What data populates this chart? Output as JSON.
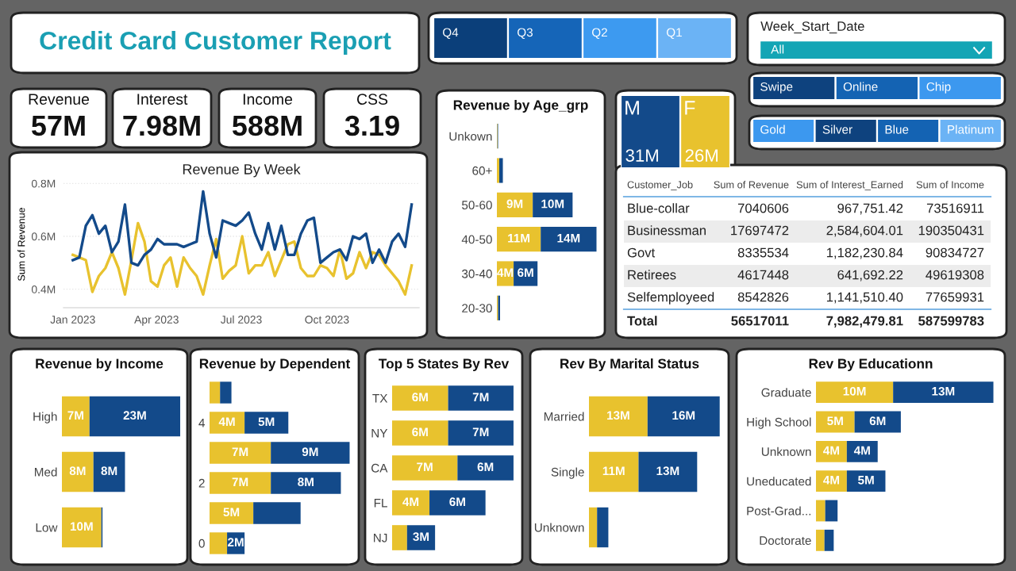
{
  "chart_data": [
    {
      "type": "other",
      "title": "Credit Card Customer Report"
    },
    {
      "type": "other",
      "categories": [
        "Q4",
        "Q3",
        "Q2",
        "Q1"
      ],
      "colors": [
        "#0b3f7a",
        "#1565b8",
        "#3d9af0",
        "#6bb3f5"
      ]
    },
    {
      "type": "other",
      "title": "Week_Start_Date",
      "annotations": [
        "All"
      ]
    },
    {
      "type": "other",
      "title": "Revenue",
      "annotations": [
        "57M"
      ]
    },
    {
      "type": "other",
      "title": "Interest",
      "annotations": [
        "7.98M"
      ]
    },
    {
      "type": "other",
      "title": "Income",
      "annotations": [
        "588M"
      ]
    },
    {
      "type": "other",
      "title": "CSS",
      "annotations": [
        "3.19"
      ]
    },
    {
      "type": "line",
      "title": "Revenue By Week",
      "ylabel": "Sum of Revenue",
      "x": [
        "2023-01-01",
        "2023-01-08",
        "2023-01-15",
        "2023-01-22",
        "2023-01-29",
        "2023-02-05",
        "2023-02-12",
        "2023-02-19",
        "2023-02-26",
        "2023-03-05",
        "2023-03-12",
        "2023-03-19",
        "2023-03-26",
        "2023-04-02",
        "2023-04-09",
        "2023-04-16",
        "2023-04-23",
        "2023-04-30",
        "2023-05-07",
        "2023-05-14",
        "2023-05-21",
        "2023-05-28",
        "2023-06-04",
        "2023-06-11",
        "2023-06-18",
        "2023-06-25",
        "2023-07-02",
        "2023-07-09",
        "2023-07-16",
        "2023-07-23",
        "2023-07-30",
        "2023-08-06",
        "2023-08-13",
        "2023-08-20",
        "2023-08-27",
        "2023-09-03",
        "2023-09-10",
        "2023-09-17",
        "2023-09-24",
        "2023-10-01",
        "2023-10-08",
        "2023-10-15",
        "2023-10-22",
        "2023-10-29",
        "2023-11-05",
        "2023-11-12",
        "2023-11-19",
        "2023-11-26",
        "2023-12-03",
        "2023-12-10",
        "2023-12-17",
        "2023-12-24",
        "2023-12-31"
      ],
      "series": [
        {
          "color": "#e8c22e",
          "values": [
            0.53,
            0.52,
            0.51,
            0.39,
            0.45,
            0.48,
            0.54,
            0.48,
            0.38,
            0.51,
            0.65,
            0.58,
            0.43,
            0.41,
            0.49,
            0.52,
            0.41,
            0.52,
            0.48,
            0.45,
            0.38,
            0.49,
            0.59,
            0.44,
            0.47,
            0.49,
            0.6,
            0.46,
            0.49,
            0.49,
            0.54,
            0.45,
            0.51,
            0.57,
            0.58,
            0.48,
            0.45,
            0.45,
            0.49,
            0.48,
            0.45,
            0.55,
            0.44,
            0.46,
            0.54,
            0.48,
            0.54,
            0.53,
            0.49,
            0.46,
            0.43,
            0.38,
            0.49
          ]
        },
        {
          "color": "#134a8a",
          "values": [
            0.51,
            0.52,
            0.64,
            0.68,
            0.61,
            0.64,
            0.54,
            0.58,
            0.72,
            0.5,
            0.49,
            0.53,
            0.55,
            0.59,
            0.57,
            0.57,
            0.57,
            0.56,
            0.57,
            0.58,
            0.77,
            0.61,
            0.52,
            0.66,
            0.65,
            0.64,
            0.66,
            0.69,
            0.61,
            0.55,
            0.65,
            0.55,
            0.64,
            0.53,
            0.53,
            0.61,
            0.66,
            0.67,
            0.5,
            0.52,
            0.54,
            0.55,
            0.51,
            0.6,
            0.59,
            0.61,
            0.5,
            0.55,
            0.5,
            0.58,
            0.61,
            0.56,
            0.72
          ]
        }
      ],
      "xlim": [
        "2022-12-22",
        "2024-01-08"
      ],
      "xticks": [
        {
          "value": "2023-01-01",
          "label": "Jan 2023"
        },
        {
          "value": "2023-04-01",
          "label": "Apr 2023"
        },
        {
          "value": "2023-07-01",
          "label": "Jul 2023"
        },
        {
          "value": "2023-10-01",
          "label": "Oct 2023"
        }
      ],
      "ylim": [
        0.33,
        0.81
      ],
      "yticks": [
        {
          "value": 0.4,
          "label": "0.4M"
        },
        {
          "value": 0.6,
          "label": "0.6M"
        },
        {
          "value": 0.8,
          "label": "0.8M"
        }
      ],
      "grid": "y",
      "line_style": "solid",
      "legend": false
    },
    {
      "type": "bar",
      "orientation": "horizontal",
      "stacked": true,
      "title": "Revenue by Age_grp",
      "categories": [
        "Unkown",
        "60+",
        "50-60",
        "40-50",
        "30-40",
        "20-30"
      ],
      "series": [
        {
          "color": "#e8c22e",
          "values": [
            0.15,
            0.6,
            9,
            11,
            4.2,
            0.3
          ],
          "value_labels": [
            null,
            null,
            "9M",
            "11M",
            "4M",
            null
          ]
        },
        {
          "color": "#134a8a",
          "values": [
            0.15,
            0.9,
            10,
            14,
            6,
            0.5
          ],
          "value_labels": [
            null,
            null,
            "10M",
            "14M",
            "6M",
            null
          ]
        }
      ]
    },
    {
      "type": "other",
      "categories": [
        "M",
        "F"
      ],
      "values": [
        31,
        26
      ],
      "value_labels": [
        "31M",
        "26M"
      ],
      "colors": [
        "#134a8a",
        "#e8c22e"
      ]
    },
    {
      "type": "other",
      "categories": [
        "Swipe",
        "Online",
        "Chip"
      ],
      "colors": [
        "#0e427e",
        "#1463b3",
        "#3c98ef"
      ]
    },
    {
      "type": "other",
      "categories": [
        "Gold",
        "Silver",
        "Blue",
        "Platinum"
      ],
      "colors": [
        "#3c98ef",
        "#0e427e",
        "#1463b3",
        "#6bb3f5"
      ]
    },
    {
      "type": "other",
      "categories": [
        "Customer_Job",
        "Sum of Revenue",
        "Sum of Interest_Earned",
        "Sum of Income"
      ],
      "y_categories": [
        "Blue-collar",
        "Businessman",
        "Govt",
        "Retirees",
        "Selfemployeed",
        "Total"
      ],
      "cell_labels": [
        [
          "7040606",
          "967,751.42",
          "73516911"
        ],
        [
          "17697472",
          "2,584,604.01",
          "190350431"
        ],
        [
          "8335534",
          "1,182,230.84",
          "90834727"
        ],
        [
          "4617448",
          "641,692.22",
          "49619308"
        ],
        [
          "8542826",
          "1,141,510.40",
          "77659931"
        ],
        [
          "56517011",
          "7,982,479.81",
          "587599783"
        ]
      ]
    },
    {
      "type": "bar",
      "orientation": "horizontal",
      "stacked": true,
      "title": "Revenue by Income",
      "categories": [
        "High",
        "Med",
        "Low"
      ],
      "series": [
        {
          "color": "#e8c22e",
          "values": [
            7,
            8,
            10
          ],
          "value_labels": [
            "7M",
            "8M",
            "10M"
          ]
        },
        {
          "color": "#134a8a",
          "values": [
            23,
            8,
            0.3
          ],
          "value_labels": [
            "23M",
            "8M",
            null
          ]
        }
      ]
    },
    {
      "type": "bar",
      "orientation": "horizontal",
      "stacked": true,
      "title": "Revenue by Dependent",
      "categories": [
        null,
        "4",
        null,
        "2",
        null,
        "0"
      ],
      "series": [
        {
          "color": "#e8c22e",
          "values": [
            1.2,
            4,
            7,
            7,
            5,
            2
          ],
          "value_labels": [
            null,
            "4M",
            "7M",
            "7M",
            "5M",
            null
          ]
        },
        {
          "color": "#134a8a",
          "values": [
            1.3,
            5,
            9,
            8,
            5.4,
            2
          ],
          "value_labels": [
            null,
            "5M",
            "9M",
            "8M",
            null,
            "2M"
          ]
        }
      ]
    },
    {
      "type": "bar",
      "orientation": "horizontal",
      "stacked": true,
      "title": "Top 5 States By Rev",
      "categories": [
        "TX",
        "NY",
        "CA",
        "FL",
        "NJ"
      ],
      "series": [
        {
          "color": "#e8c22e",
          "values": [
            6,
            6,
            7,
            4,
            1.6
          ],
          "value_labels": [
            "6M",
            "6M",
            "7M",
            "4M",
            null
          ]
        },
        {
          "color": "#134a8a",
          "values": [
            7,
            7,
            6,
            6,
            3
          ],
          "value_labels": [
            "7M",
            "7M",
            "6M",
            "6M",
            "3M"
          ]
        }
      ]
    },
    {
      "type": "bar",
      "orientation": "horizontal",
      "stacked": true,
      "title": "Rev By Marital Status",
      "categories": [
        "Married",
        "Single",
        "Unknown"
      ],
      "series": [
        {
          "color": "#e8c22e",
          "values": [
            13,
            11,
            1.8
          ],
          "value_labels": [
            "13M",
            "11M",
            null
          ]
        },
        {
          "color": "#134a8a",
          "values": [
            16,
            13,
            2.5
          ],
          "value_labels": [
            "16M",
            "13M",
            null
          ]
        }
      ]
    },
    {
      "type": "bar",
      "orientation": "horizontal",
      "stacked": true,
      "title": "Rev By Educationn",
      "categories": [
        "Graduate",
        "High School",
        "Unknown",
        "Uneducated",
        "Post-Grad...",
        "Doctorate"
      ],
      "series": [
        {
          "color": "#e8c22e",
          "values": [
            10,
            5,
            4,
            4,
            1.2,
            1.1
          ],
          "value_labels": [
            "10M",
            "5M",
            "4M",
            "4M",
            null,
            null
          ]
        },
        {
          "color": "#134a8a",
          "values": [
            13,
            6,
            4,
            5,
            1.6,
            1.2
          ],
          "value_labels": [
            "13M",
            "6M",
            "4M",
            "5M",
            null,
            null
          ]
        }
      ]
    }
  ]
}
